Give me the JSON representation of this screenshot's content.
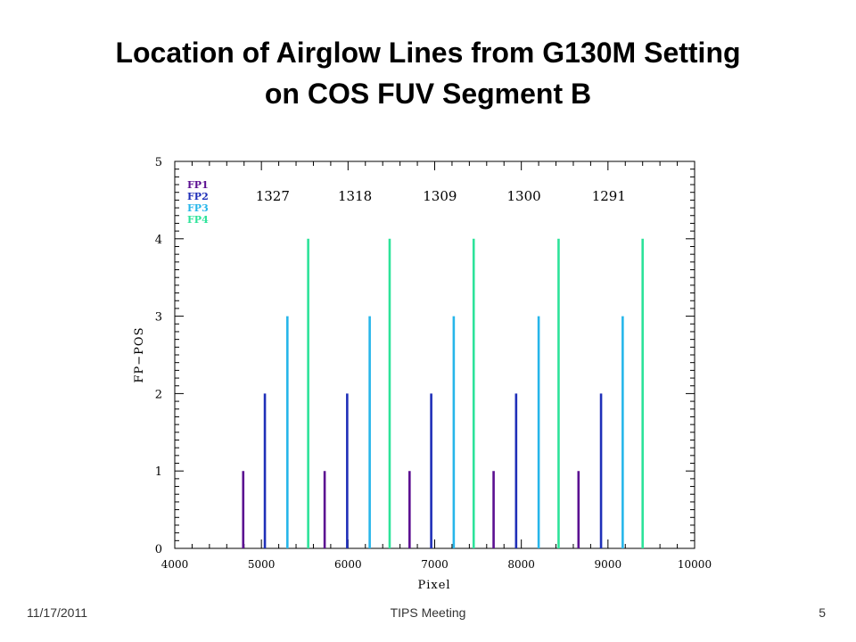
{
  "slide": {
    "title_line1": "Location of Airglow Lines from G130M Setting",
    "title_line2": "on COS FUV Segment B"
  },
  "footer": {
    "date": "11/17/2011",
    "title": "TIPS Meeting",
    "page": "5"
  },
  "chart_data": {
    "type": "bar",
    "xlabel": "Pixel",
    "ylabel": "FP−POS",
    "xlim": [
      4000,
      10000
    ],
    "ylim": [
      0,
      5
    ],
    "xticks": [
      4000,
      5000,
      6000,
      7000,
      8000,
      9000,
      10000
    ],
    "yticks": [
      0,
      1,
      2,
      3,
      4,
      5
    ],
    "grid": false,
    "legend_placement": "top-left",
    "series": [
      {
        "name": "FP1",
        "color": "#5b0f91",
        "y": 1,
        "x": [
          4790,
          5730,
          6710,
          7680,
          8660
        ]
      },
      {
        "name": "FP2",
        "color": "#1f2fb8",
        "y": 2,
        "x": [
          5040,
          5990,
          6960,
          7940,
          8920
        ]
      },
      {
        "name": "FP3",
        "color": "#27b6ea",
        "y": 3,
        "x": [
          5300,
          6250,
          7220,
          8200,
          9170
        ]
      },
      {
        "name": "FP4",
        "color": "#2de39a",
        "y": 4,
        "x": [
          5540,
          6480,
          7450,
          8430,
          9400
        ]
      }
    ],
    "annotations": [
      {
        "text": "1327",
        "x": 5130
      },
      {
        "text": "1318",
        "x": 6080
      },
      {
        "text": "1309",
        "x": 7060
      },
      {
        "text": "1300",
        "x": 8030
      },
      {
        "text": "1291",
        "x": 9010
      }
    ]
  }
}
